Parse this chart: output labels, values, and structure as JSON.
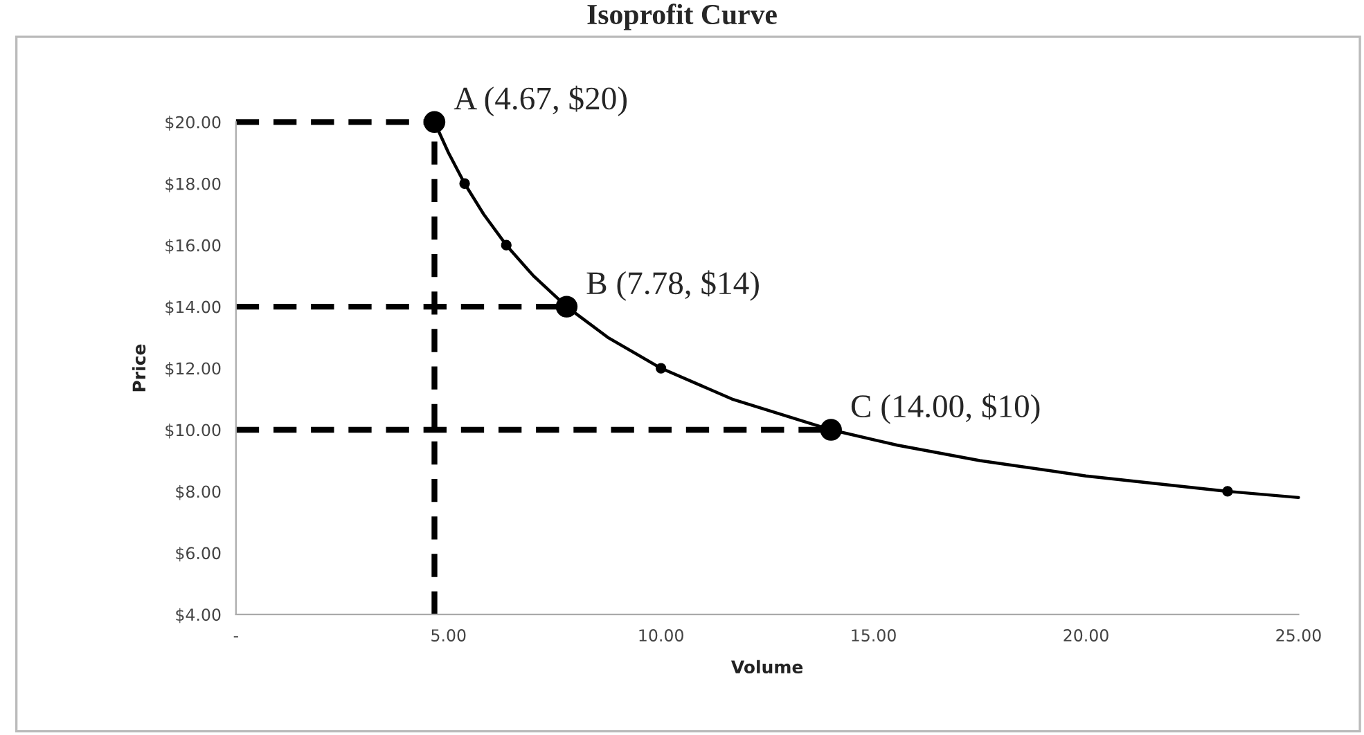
{
  "chart_data": {
    "type": "line",
    "title": "Isoprofit Curve",
    "xlabel": "Volume",
    "ylabel": "Price",
    "xlim": [
      0,
      25
    ],
    "xticks": [
      {
        "value": 0,
        "label": "-"
      },
      {
        "value": 5,
        "label": "5.00"
      },
      {
        "value": 10,
        "label": "10.00"
      },
      {
        "value": 15,
        "label": "15.00"
      },
      {
        "value": 20,
        "label": "20.00"
      },
      {
        "value": 25,
        "label": "25.00"
      }
    ],
    "ylim": [
      4,
      20
    ],
    "yticks": [
      {
        "value": 4,
        "label": "$4.00"
      },
      {
        "value": 6,
        "label": "$6.00"
      },
      {
        "value": 8,
        "label": "$8.00"
      },
      {
        "value": 10,
        "label": "$10.00"
      },
      {
        "value": 12,
        "label": "$12.00"
      },
      {
        "value": 14,
        "label": "$14.00"
      },
      {
        "value": 16,
        "label": "$16.00"
      },
      {
        "value": 18,
        "label": "$18.00"
      },
      {
        "value": 20,
        "label": "$20.00"
      }
    ],
    "grid": false,
    "legend": false,
    "series": [
      {
        "color": "#000000",
        "marker": "none",
        "line_style": "solid",
        "x": [
          4.67,
          5.0,
          5.38,
          5.83,
          6.36,
          7.0,
          7.78,
          8.75,
          10.0,
          11.67,
          14.0,
          15.56,
          17.5,
          20.0,
          23.33,
          25.0
        ],
        "values": [
          20,
          19,
          18,
          17,
          16,
          15,
          14,
          13,
          12,
          11,
          10,
          9.5,
          9,
          8.5,
          8,
          7.8
        ]
      },
      {
        "type": "scatter",
        "color": "#000000",
        "marker": "circle",
        "x": [
          5.38,
          6.36,
          10.0,
          23.33
        ],
        "values": [
          18,
          16,
          12,
          8
        ]
      },
      {
        "type": "scatter",
        "color": "#000000",
        "marker": "circle",
        "x": [
          4.67,
          7.78,
          14.0
        ],
        "values": [
          20,
          14,
          10
        ]
      },
      {
        "color": "#000000",
        "marker": "none",
        "line_style": "dashed",
        "x": [
          0,
          4.67
        ],
        "values": [
          20,
          20
        ]
      },
      {
        "color": "#000000",
        "marker": "none",
        "line_style": "dashed",
        "x": [
          0,
          7.78
        ],
        "values": [
          14,
          14
        ]
      },
      {
        "color": "#000000",
        "marker": "none",
        "line_style": "dashed",
        "x": [
          0,
          14.0
        ],
        "values": [
          10,
          10
        ]
      },
      {
        "color": "#000000",
        "marker": "none",
        "line_style": "dashed",
        "x": [
          4.67,
          4.67
        ],
        "values": [
          4,
          20
        ]
      }
    ],
    "annotations": [
      {
        "text": "A (4.67, $20)",
        "x": 4.67,
        "y": 20
      },
      {
        "text": "B (7.78, $14)",
        "x": 7.78,
        "y": 14
      },
      {
        "text": "C (14.00, $10)",
        "x": 14.0,
        "y": 10
      }
    ]
  }
}
